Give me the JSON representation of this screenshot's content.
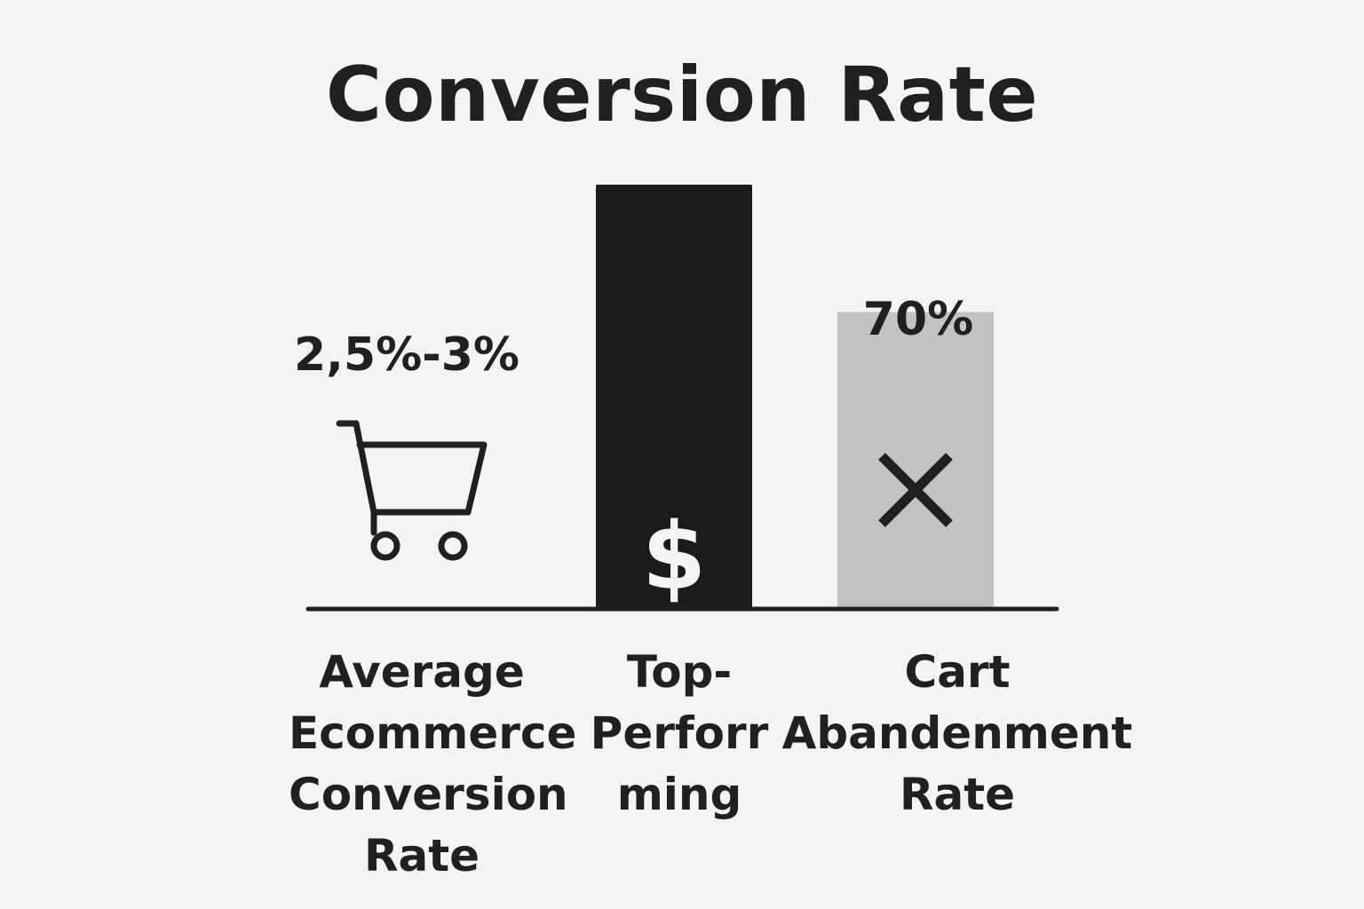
{
  "chart_data": {
    "type": "bar",
    "title": "Conversion Rate",
    "categories": [
      "Average Ecommerce Conversion Rate",
      "Top-Performing",
      "Cart Abandenment Rate"
    ],
    "values": [
      2.75,
      100,
      70
    ],
    "value_labels": [
      "2,5%-3%",
      "",
      "70%"
    ],
    "category_label_lines": [
      [
        "Average",
        "Ecommerce",
        "Conversion",
        "Rate"
      ],
      [
        "Top-",
        "Perforr",
        "ming"
      ],
      [
        "Cart",
        "Abandenment",
        "Rate"
      ]
    ],
    "colors": [
      "#1f2020",
      "#1a1c1c",
      "#c2c4c4"
    ],
    "icons": [
      "shopping-cart-icon",
      "dollar-icon",
      "x-icon"
    ],
    "icon_glyphs": [
      "",
      "$",
      ""
    ],
    "ylim": [
      0,
      100
    ],
    "grid": false,
    "legend": "none",
    "axis_color": "#1f2020",
    "text_color": "#1f2020"
  }
}
